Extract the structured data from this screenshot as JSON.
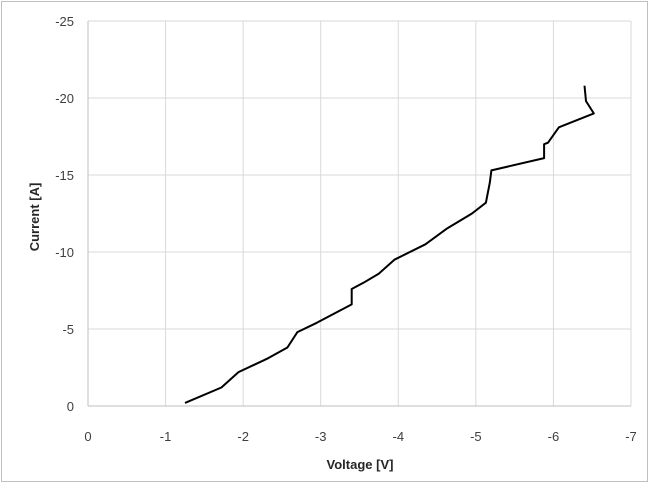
{
  "chart_data": {
    "type": "line",
    "title": "",
    "xlabel": "Voltage [V]",
    "ylabel": "Current [A]",
    "xlim": [
      0,
      -7
    ],
    "ylim": [
      0,
      -25
    ],
    "x_ticks": [
      0,
      -1,
      -2,
      -3,
      -4,
      -5,
      -6,
      -7
    ],
    "y_ticks": [
      0,
      -5,
      -10,
      -15,
      -20,
      -25
    ],
    "x_tick_labels": [
      "0",
      "-1",
      "-2",
      "-3",
      "-4",
      "-5",
      "-6",
      "-7"
    ],
    "y_tick_labels": [
      "0",
      "-5",
      "-10",
      "-15",
      "-20",
      "-25"
    ],
    "grid": true,
    "legend": false,
    "colors": {
      "line": "#000000",
      "grid": "#d9d9d9",
      "frame": "#bfbfbf"
    },
    "series": [
      {
        "x": [
          -1.25,
          -1.72,
          -1.94,
          -2.32,
          -2.57,
          -2.7,
          -2.95,
          -3.4,
          -3.4,
          -3.55,
          -3.75,
          -3.95,
          -4.35,
          -4.62,
          -4.95,
          -5.13,
          -5.18,
          -5.2,
          -5.88,
          -5.88,
          -5.93,
          -6.07,
          -6.52,
          -6.42,
          -6.4
        ],
        "y": [
          -0.2,
          -1.2,
          -2.2,
          -3.1,
          -3.8,
          -4.8,
          -5.4,
          -6.6,
          -7.6,
          -8.0,
          -8.6,
          -9.5,
          -10.5,
          -11.5,
          -12.5,
          -13.2,
          -14.5,
          -15.3,
          -16.1,
          -17.0,
          -17.1,
          -18.1,
          -19.0,
          -19.8,
          -20.8
        ]
      }
    ]
  }
}
